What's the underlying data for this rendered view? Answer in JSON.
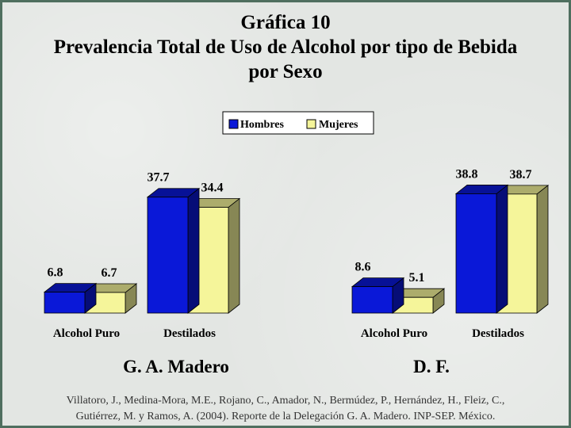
{
  "title": {
    "line1": "Gráfica 10",
    "line2": "Prevalencia Total de Uso de Alcohol por tipo de Bebida",
    "line3": "por Sexo"
  },
  "colors": {
    "hombres": "#0a18d8",
    "mujeres": "#f5f59a",
    "floor": "#000000"
  },
  "chart_data": [
    {
      "type": "bar",
      "group_label": "G. A. Madero",
      "categories": [
        "Alcohol Puro",
        "Destilados"
      ],
      "series": [
        {
          "name": "Hombres",
          "values": [
            6.8,
            37.7
          ]
        },
        {
          "name": "Mujeres",
          "values": [
            6.7,
            34.4
          ]
        }
      ],
      "value_labels": [
        [
          "6.8",
          "37.7"
        ],
        [
          "6.7",
          "34.4"
        ]
      ],
      "ylim": [
        0,
        40
      ],
      "legend": "top-center",
      "grid": false
    },
    {
      "type": "bar",
      "group_label": "D. F.",
      "categories": [
        "Alcohol Puro",
        "Destilados"
      ],
      "series": [
        {
          "name": "Hombres",
          "values": [
            8.6,
            38.8
          ]
        },
        {
          "name": "Mujeres",
          "values": [
            5.1,
            38.7
          ]
        }
      ],
      "value_labels": [
        [
          "8.6",
          "38.8"
        ],
        [
          "5.1",
          "38.7"
        ]
      ],
      "ylim": [
        0,
        40
      ],
      "legend": "top-center",
      "grid": false
    }
  ],
  "caption": {
    "line1": "Villatoro, J., Medina-Mora, M.E., Rojano, C., Amador, N., Bermúdez, P., Hernández, H., Fleiz, C.,",
    "line2": "Gutiérrez, M. y Ramos, A. (2004). Reporte de la Delegación G. A. Madero. INP-SEP. México."
  }
}
